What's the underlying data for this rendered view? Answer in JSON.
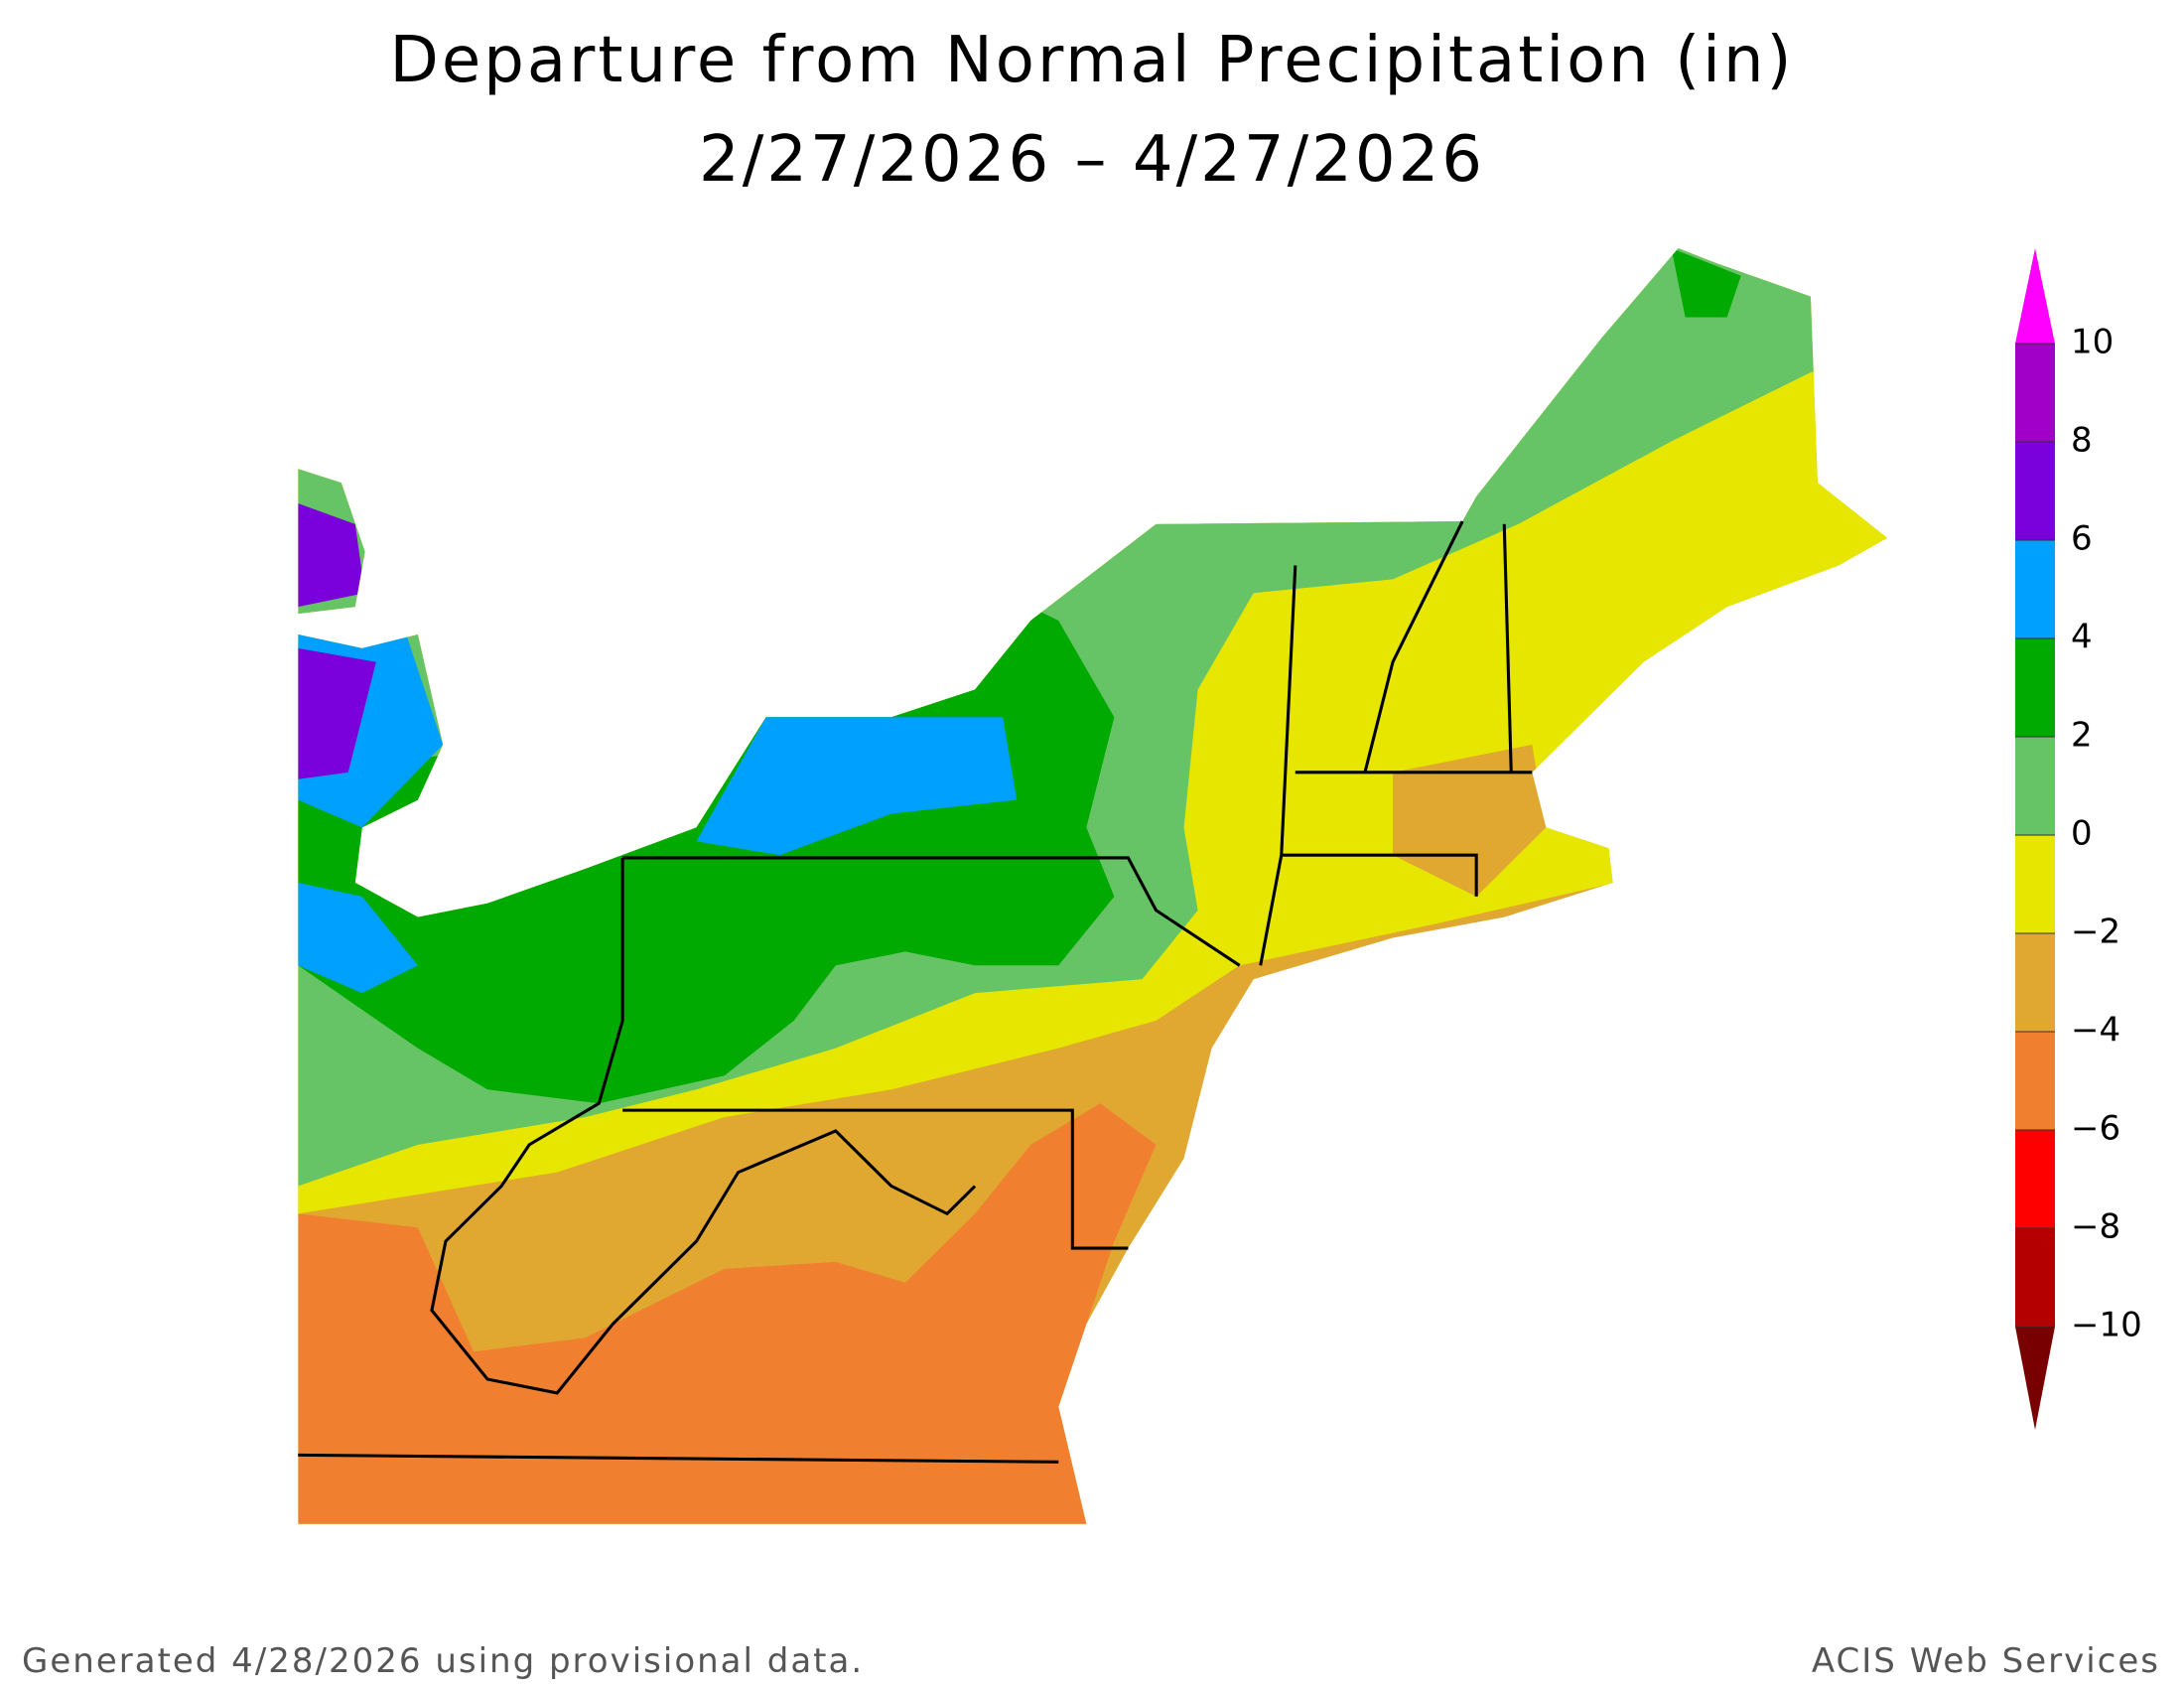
{
  "title": "Departure from Normal Precipitation (in)",
  "subtitle": "2/27/2026 – 4/27/2026",
  "legend": {
    "ticks": [
      10,
      8,
      6,
      4,
      2,
      0,
      {
        "value": -2,
        "label": "−2"
      },
      {
        "value": -4,
        "label": "−4"
      },
      {
        "value": -6,
        "label": "−6"
      },
      {
        "value": -8,
        "label": "−8"
      },
      {
        "value": -10,
        "label": "−10"
      }
    ],
    "colors": [
      "#ff00ff",
      "#a000c8",
      "#7a00dc",
      "#00a0ff",
      "#00aa00",
      "#66c466",
      "#e6e600",
      "#e0a830",
      "#f08030",
      "#ff0000",
      "#b40000",
      "#780000"
    ]
  },
  "footer": {
    "left": "Generated 4/28/2026 using provisional data.",
    "right": "ACIS Web Services"
  }
}
